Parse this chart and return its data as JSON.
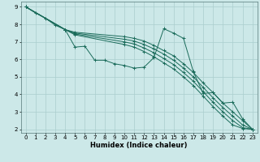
{
  "xlabel": "Humidex (Indice chaleur)",
  "bg_color": "#cce8e8",
  "grid_color": "#aacece",
  "line_color": "#1a6b5a",
  "xlim": [
    -0.5,
    23.5
  ],
  "ylim": [
    1.8,
    9.3
  ],
  "xticks": [
    0,
    1,
    2,
    3,
    4,
    5,
    6,
    7,
    8,
    9,
    10,
    11,
    12,
    13,
    14,
    15,
    16,
    17,
    18,
    19,
    20,
    21,
    22,
    23
  ],
  "yticks": [
    2,
    3,
    4,
    5,
    6,
    7,
    8,
    9
  ],
  "series": [
    {
      "x": [
        0,
        1,
        2,
        3,
        4,
        5,
        6,
        7,
        8,
        9,
        10,
        11,
        12,
        13,
        14,
        15,
        16,
        17,
        18,
        19,
        20,
        21,
        22,
        23
      ],
      "y": [
        9,
        8.65,
        8.35,
        7.95,
        7.7,
        6.7,
        6.75,
        5.95,
        5.95,
        5.75,
        5.65,
        5.5,
        5.55,
        6.1,
        7.75,
        7.5,
        7.2,
        5.3,
        4.05,
        4.1,
        3.5,
        3.55,
        2.6,
        2.0
      ]
    },
    {
      "x": [
        0,
        4,
        5,
        10,
        11,
        12,
        13,
        14,
        15,
        16,
        17,
        18,
        19,
        20,
        21,
        22,
        23
      ],
      "y": [
        9,
        7.7,
        7.55,
        7.3,
        7.2,
        7.05,
        6.8,
        6.5,
        6.2,
        5.75,
        5.25,
        4.65,
        4.1,
        3.5,
        3.0,
        2.5,
        2.0
      ]
    },
    {
      "x": [
        0,
        4,
        5,
        10,
        11,
        12,
        13,
        14,
        15,
        16,
        17,
        18,
        19,
        20,
        21,
        22,
        23
      ],
      "y": [
        9,
        7.7,
        7.5,
        7.15,
        7.05,
        6.85,
        6.6,
        6.3,
        5.95,
        5.5,
        5.0,
        4.4,
        3.8,
        3.25,
        2.75,
        2.25,
        2.0
      ]
    },
    {
      "x": [
        0,
        4,
        5,
        10,
        11,
        12,
        13,
        14,
        15,
        16,
        17,
        18,
        19,
        20,
        21,
        22,
        23
      ],
      "y": [
        9,
        7.7,
        7.45,
        7.0,
        6.88,
        6.65,
        6.38,
        6.05,
        5.7,
        5.25,
        4.75,
        4.15,
        3.55,
        3.0,
        2.5,
        2.1,
        2.0
      ]
    },
    {
      "x": [
        0,
        4,
        5,
        10,
        11,
        12,
        13,
        14,
        15,
        16,
        17,
        18,
        19,
        20,
        21,
        22,
        23
      ],
      "y": [
        9,
        7.7,
        7.4,
        6.85,
        6.7,
        6.45,
        6.15,
        5.8,
        5.45,
        5.0,
        4.5,
        3.9,
        3.3,
        2.75,
        2.25,
        2.05,
        2.0
      ]
    }
  ]
}
